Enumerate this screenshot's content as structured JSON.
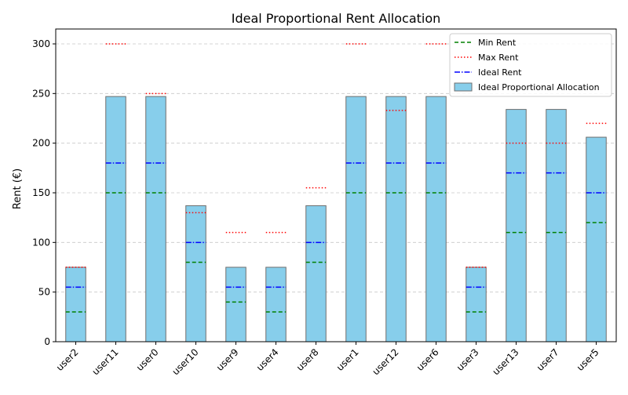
{
  "chart_data": {
    "type": "bar",
    "title": "Ideal Proportional Rent Allocation",
    "xlabel": "",
    "ylabel": "Rent (€)",
    "ylim": [
      0,
      315
    ],
    "yticks": [
      0,
      50,
      100,
      150,
      200,
      250,
      300
    ],
    "grid": "y-dashed",
    "legend_position": "top-right",
    "categories": [
      "user2",
      "user11",
      "user0",
      "user10",
      "user9",
      "user4",
      "user8",
      "user1",
      "user12",
      "user6",
      "user3",
      "user13",
      "user7",
      "user5"
    ],
    "series": [
      {
        "name": "Ideal Proportional Allocation",
        "kind": "bar",
        "color": "#87ceeb",
        "values": [
          75,
          247,
          247,
          137,
          75,
          75,
          137,
          247,
          247,
          247,
          75,
          234,
          234,
          206
        ]
      },
      {
        "name": "Min Rent",
        "kind": "marker-dashed",
        "color": "#008000",
        "values": [
          30,
          150,
          150,
          80,
          40,
          30,
          80,
          150,
          150,
          150,
          30,
          110,
          110,
          120
        ]
      },
      {
        "name": "Max Rent",
        "kind": "marker-dotted",
        "color": "#ff0000",
        "values": [
          75,
          300,
          250,
          130,
          110,
          110,
          155,
          300,
          233,
          300,
          75,
          200,
          200,
          220
        ]
      },
      {
        "name": "Ideal Rent",
        "kind": "marker-dashdot",
        "color": "#0000ff",
        "values": [
          55,
          180,
          180,
          100,
          55,
          55,
          100,
          180,
          180,
          180,
          55,
          170,
          170,
          150
        ]
      }
    ]
  }
}
